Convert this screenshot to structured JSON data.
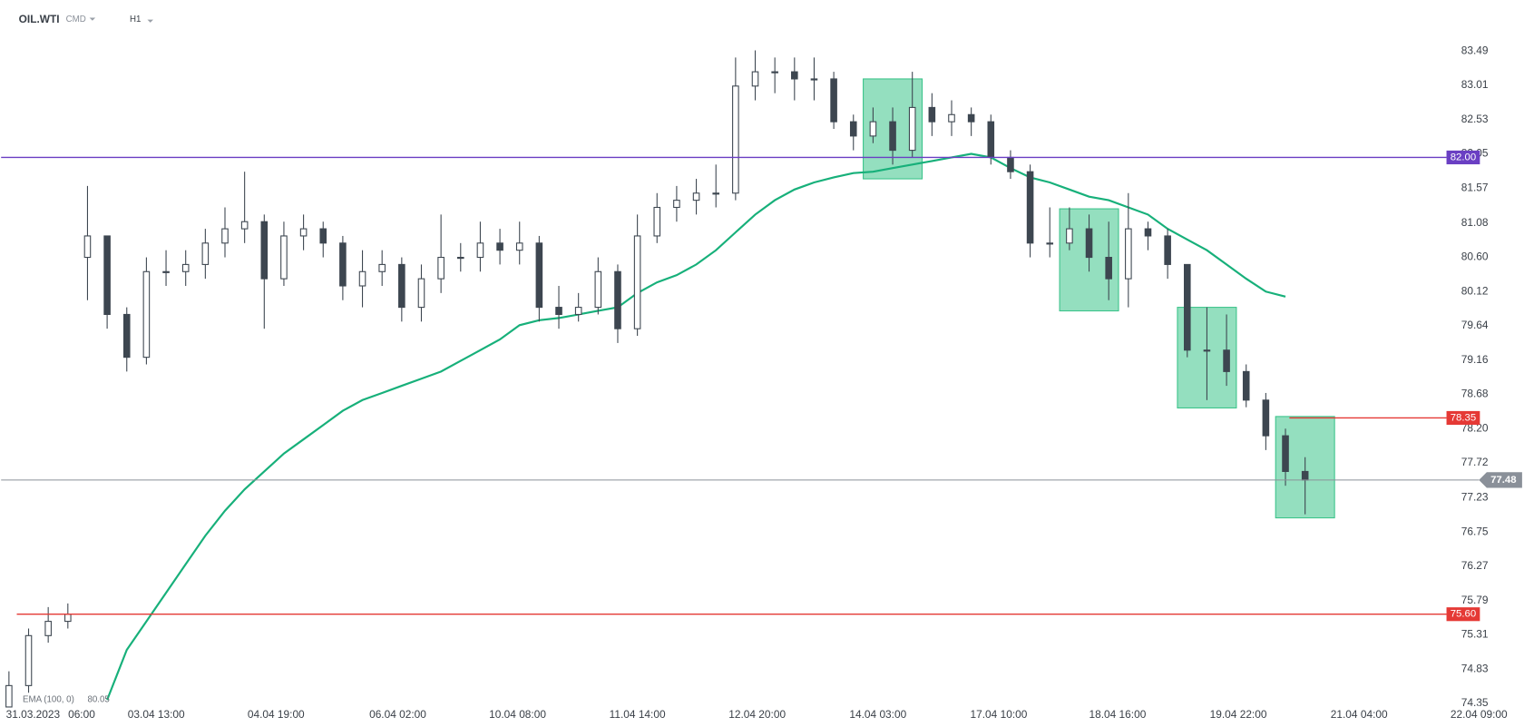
{
  "header": {
    "symbol": "OIL.WTI",
    "market": "CMD",
    "interval": "H1"
  },
  "chart_data": {
    "type": "candlestick",
    "date_label": "31.03.2023",
    "xlim": [
      -0.4,
      77.6
    ],
    "xticks": [
      {
        "value": 3.7,
        "label": "06:00"
      },
      {
        "value": 7.5,
        "label": "03.04 13:00"
      },
      {
        "value": 13.6,
        "label": "04.04 19:00"
      },
      {
        "value": 19.8,
        "label": "06.04 02:00"
      },
      {
        "value": 25.9,
        "label": "10.04 08:00"
      },
      {
        "value": 32,
        "label": "11.04 14:00"
      },
      {
        "value": 38.1,
        "label": "12.04 20:00"
      },
      {
        "value": 44.25,
        "label": "14.04 03:00"
      },
      {
        "value": 50.4,
        "label": "17.04 10:00"
      },
      {
        "value": 56.45,
        "label": "18.04 16:00"
      },
      {
        "value": 62.6,
        "label": "19.04 22:00"
      },
      {
        "value": 68.75,
        "label": "21.04 04:00"
      },
      {
        "value": 74.85,
        "label": "22.04 09:00"
      }
    ],
    "ylim": [
      74.35,
      83.49
    ],
    "yticks": [
      83.49,
      83.01,
      82.53,
      82.05,
      81.57,
      81.08,
      {
        "value": 80.6,
        "label": "80.60"
      },
      80.12,
      79.64,
      79.16,
      78.68,
      {
        "value": 78.2,
        "label": "78.20"
      },
      77.72,
      77.23,
      76.75,
      76.27,
      75.79,
      75.31,
      74.83,
      74.35
    ],
    "candle_color": "#3d4650",
    "open": [
      74.3,
      74.6,
      75.3,
      75.5,
      80.6,
      80.9,
      79.8,
      79.2,
      80.4,
      80.4,
      80.5,
      80.8,
      81.0,
      81.1,
      80.3,
      80.9,
      81.0,
      80.8,
      80.2,
      80.4,
      80.5,
      79.9,
      80.3,
      80.6,
      80.6,
      80.8,
      80.7,
      80.8,
      79.9,
      79.8,
      79.9,
      80.4,
      79.6,
      80.9,
      81.3,
      81.4,
      81.5,
      81.5,
      83.0,
      83.2,
      83.2,
      83.1,
      83.1,
      82.5,
      82.3,
      82.5,
      82.1,
      82.7,
      82.5,
      82.6,
      82.5,
      82.0,
      81.8,
      80.8,
      80.8,
      81.0,
      80.6,
      80.3,
      81.0,
      80.9,
      80.5,
      79.3,
      79.3,
      79.0,
      78.6,
      78.1,
      77.6
    ],
    "high": [
      74.8,
      75.4,
      75.7,
      75.75,
      81.6,
      80.9,
      79.9,
      80.6,
      80.7,
      80.7,
      81.0,
      81.3,
      81.8,
      81.2,
      81.1,
      81.2,
      81.1,
      80.9,
      80.7,
      80.7,
      80.6,
      80.5,
      81.2,
      80.8,
      81.1,
      81.0,
      81.1,
      80.9,
      80.2,
      80.1,
      80.6,
      80.5,
      81.2,
      81.5,
      81.6,
      81.7,
      81.9,
      83.4,
      83.5,
      83.4,
      83.4,
      83.4,
      83.2,
      82.6,
      82.7,
      82.7,
      83.2,
      82.9,
      82.8,
      82.7,
      82.6,
      82.1,
      81.9,
      81.3,
      81.3,
      81.2,
      81.1,
      81.5,
      81.1,
      81.0,
      80.5,
      79.9,
      79.8,
      79.1,
      78.7,
      78.2,
      77.8
    ],
    "low": [
      74.3,
      74.5,
      75.2,
      75.4,
      80.0,
      79.6,
      79.0,
      79.1,
      80.2,
      80.2,
      80.3,
      80.6,
      80.8,
      79.6,
      80.2,
      80.7,
      80.6,
      80.0,
      79.9,
      80.2,
      79.7,
      79.7,
      80.1,
      80.4,
      80.4,
      80.5,
      80.5,
      79.7,
      79.6,
      79.7,
      79.8,
      79.4,
      79.5,
      80.8,
      81.1,
      81.2,
      81.3,
      81.4,
      82.8,
      82.9,
      82.8,
      82.8,
      82.4,
      82.1,
      82.2,
      81.9,
      82.0,
      82.3,
      82.3,
      82.3,
      81.9,
      81.7,
      80.6,
      80.6,
      80.7,
      80.4,
      80.0,
      79.9,
      80.7,
      80.3,
      79.2,
      78.6,
      78.8,
      78.5,
      77.9,
      77.4,
      77.0
    ],
    "close": [
      74.6,
      75.3,
      75.5,
      75.6,
      80.9,
      79.8,
      79.2,
      80.4,
      80.4,
      80.5,
      80.8,
      81.0,
      81.1,
      80.3,
      80.9,
      81.0,
      80.8,
      80.2,
      80.4,
      80.5,
      79.9,
      80.3,
      80.6,
      80.6,
      80.8,
      80.7,
      80.8,
      79.9,
      79.8,
      79.9,
      80.4,
      79.6,
      80.9,
      81.3,
      81.4,
      81.5,
      81.5,
      83.0,
      83.2,
      83.2,
      83.1,
      83.1,
      82.5,
      82.3,
      82.5,
      82.1,
      82.7,
      82.5,
      82.6,
      82.5,
      82.0,
      81.8,
      80.8,
      80.8,
      81.0,
      80.6,
      80.3,
      81.0,
      80.9,
      80.5,
      79.3,
      79.3,
      79.0,
      78.6,
      78.1,
      77.6,
      77.48
    ],
    "indicator": {
      "name": "EMA (100, 0)",
      "value": 80.05,
      "color": "#17b07a",
      "values": [
        null,
        null,
        null,
        null,
        null,
        74.4,
        75.1,
        75.5,
        75.9,
        76.3,
        76.7,
        77.05,
        77.35,
        77.6,
        77.85,
        78.05,
        78.25,
        78.45,
        78.6,
        78.7,
        78.8,
        78.9,
        79.0,
        79.15,
        79.3,
        79.45,
        79.65,
        79.72,
        79.75,
        79.8,
        79.85,
        79.9,
        80.1,
        80.25,
        80.35,
        80.5,
        80.7,
        80.95,
        81.2,
        81.4,
        81.55,
        81.65,
        81.72,
        81.78,
        81.8,
        81.85,
        81.9,
        81.95,
        82.0,
        82.05,
        82.0,
        81.85,
        81.72,
        81.65,
        81.55,
        81.45,
        81.4,
        81.3,
        81.2,
        81.0,
        80.85,
        80.7,
        80.5,
        80.3,
        80.12,
        80.05,
        null
      ]
    },
    "levels": [
      {
        "value": 82.0,
        "label": "82.00",
        "color": "#6a3fc3",
        "x_start": -0.4
      },
      {
        "value": 78.35,
        "label": "78.35",
        "color": "#e53935",
        "x_start": 65.2
      },
      {
        "value": 75.6,
        "label": "75.60",
        "color": "#e53935",
        "x_start": 0.4
      }
    ],
    "current_price": {
      "value": 77.48,
      "color": "#8a9099"
    },
    "zones": [
      {
        "x0": 43.5,
        "x1": 46.5,
        "y0": 81.7,
        "y1": 83.1
      },
      {
        "x0": 53.5,
        "x1": 56.5,
        "y0": 79.85,
        "y1": 81.28
      },
      {
        "x0": 59.5,
        "x1": 62.5,
        "y0": 78.49,
        "y1": 79.9
      },
      {
        "x0": 64.5,
        "x1": 67.5,
        "y0": 76.95,
        "y1": 78.37
      }
    ],
    "zone_color": "#3cc48b"
  }
}
